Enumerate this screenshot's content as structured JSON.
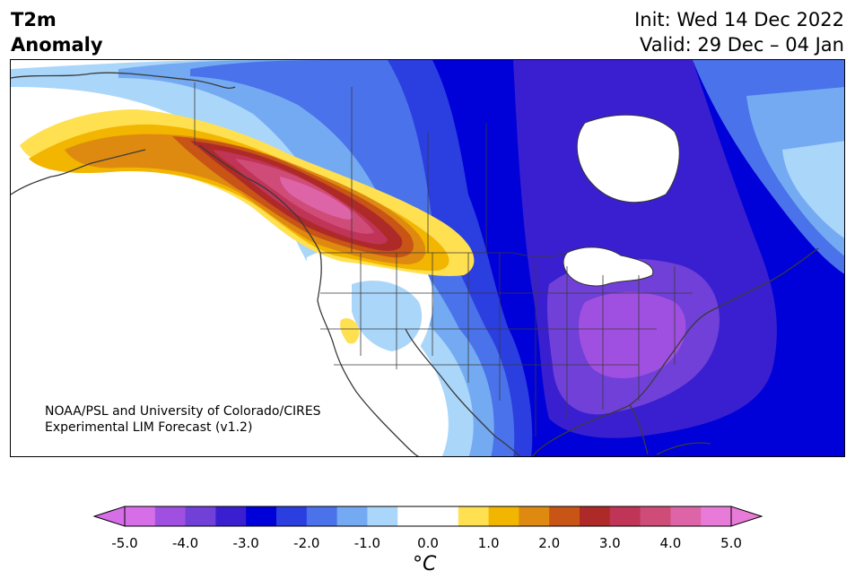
{
  "header": {
    "title_line1": "T2m",
    "title_line2": "Anomaly",
    "init_label": "Init: Wed 14 Dec 2022",
    "valid_label": "Valid: 29 Dec – 04 Jan"
  },
  "map": {
    "region": "North America",
    "credit_line1": "NOAA/PSL and University of Colorado/CIRES",
    "credit_line2": "Experimental LIM Forecast (v1.2)"
  },
  "colorbar": {
    "unit": "°C",
    "ticks": [
      "-5.0",
      "-4.0",
      "-3.0",
      "-2.0",
      "-1.0",
      "0.0",
      "1.0",
      "2.0",
      "3.0",
      "4.0",
      "5.0"
    ],
    "levels_min": -5.0,
    "levels_max": 5.0,
    "level_step": 0.5,
    "colors": [
      "#d66ee8",
      "#a050e0",
      "#7040d8",
      "#3a1fd0",
      "#0000d8",
      "#2b3ee0",
      "#4a72ea",
      "#74aaf2",
      "#aad6fa",
      "#ffffff",
      "#ffffff",
      "#ffe050",
      "#f2b500",
      "#de8a10",
      "#c85416",
      "#ae2a28",
      "#c03458",
      "#d04c78",
      "#de64a8",
      "#e87ad8"
    ],
    "under_color": "#d66ee8",
    "over_color": "#e87ad8"
  }
}
